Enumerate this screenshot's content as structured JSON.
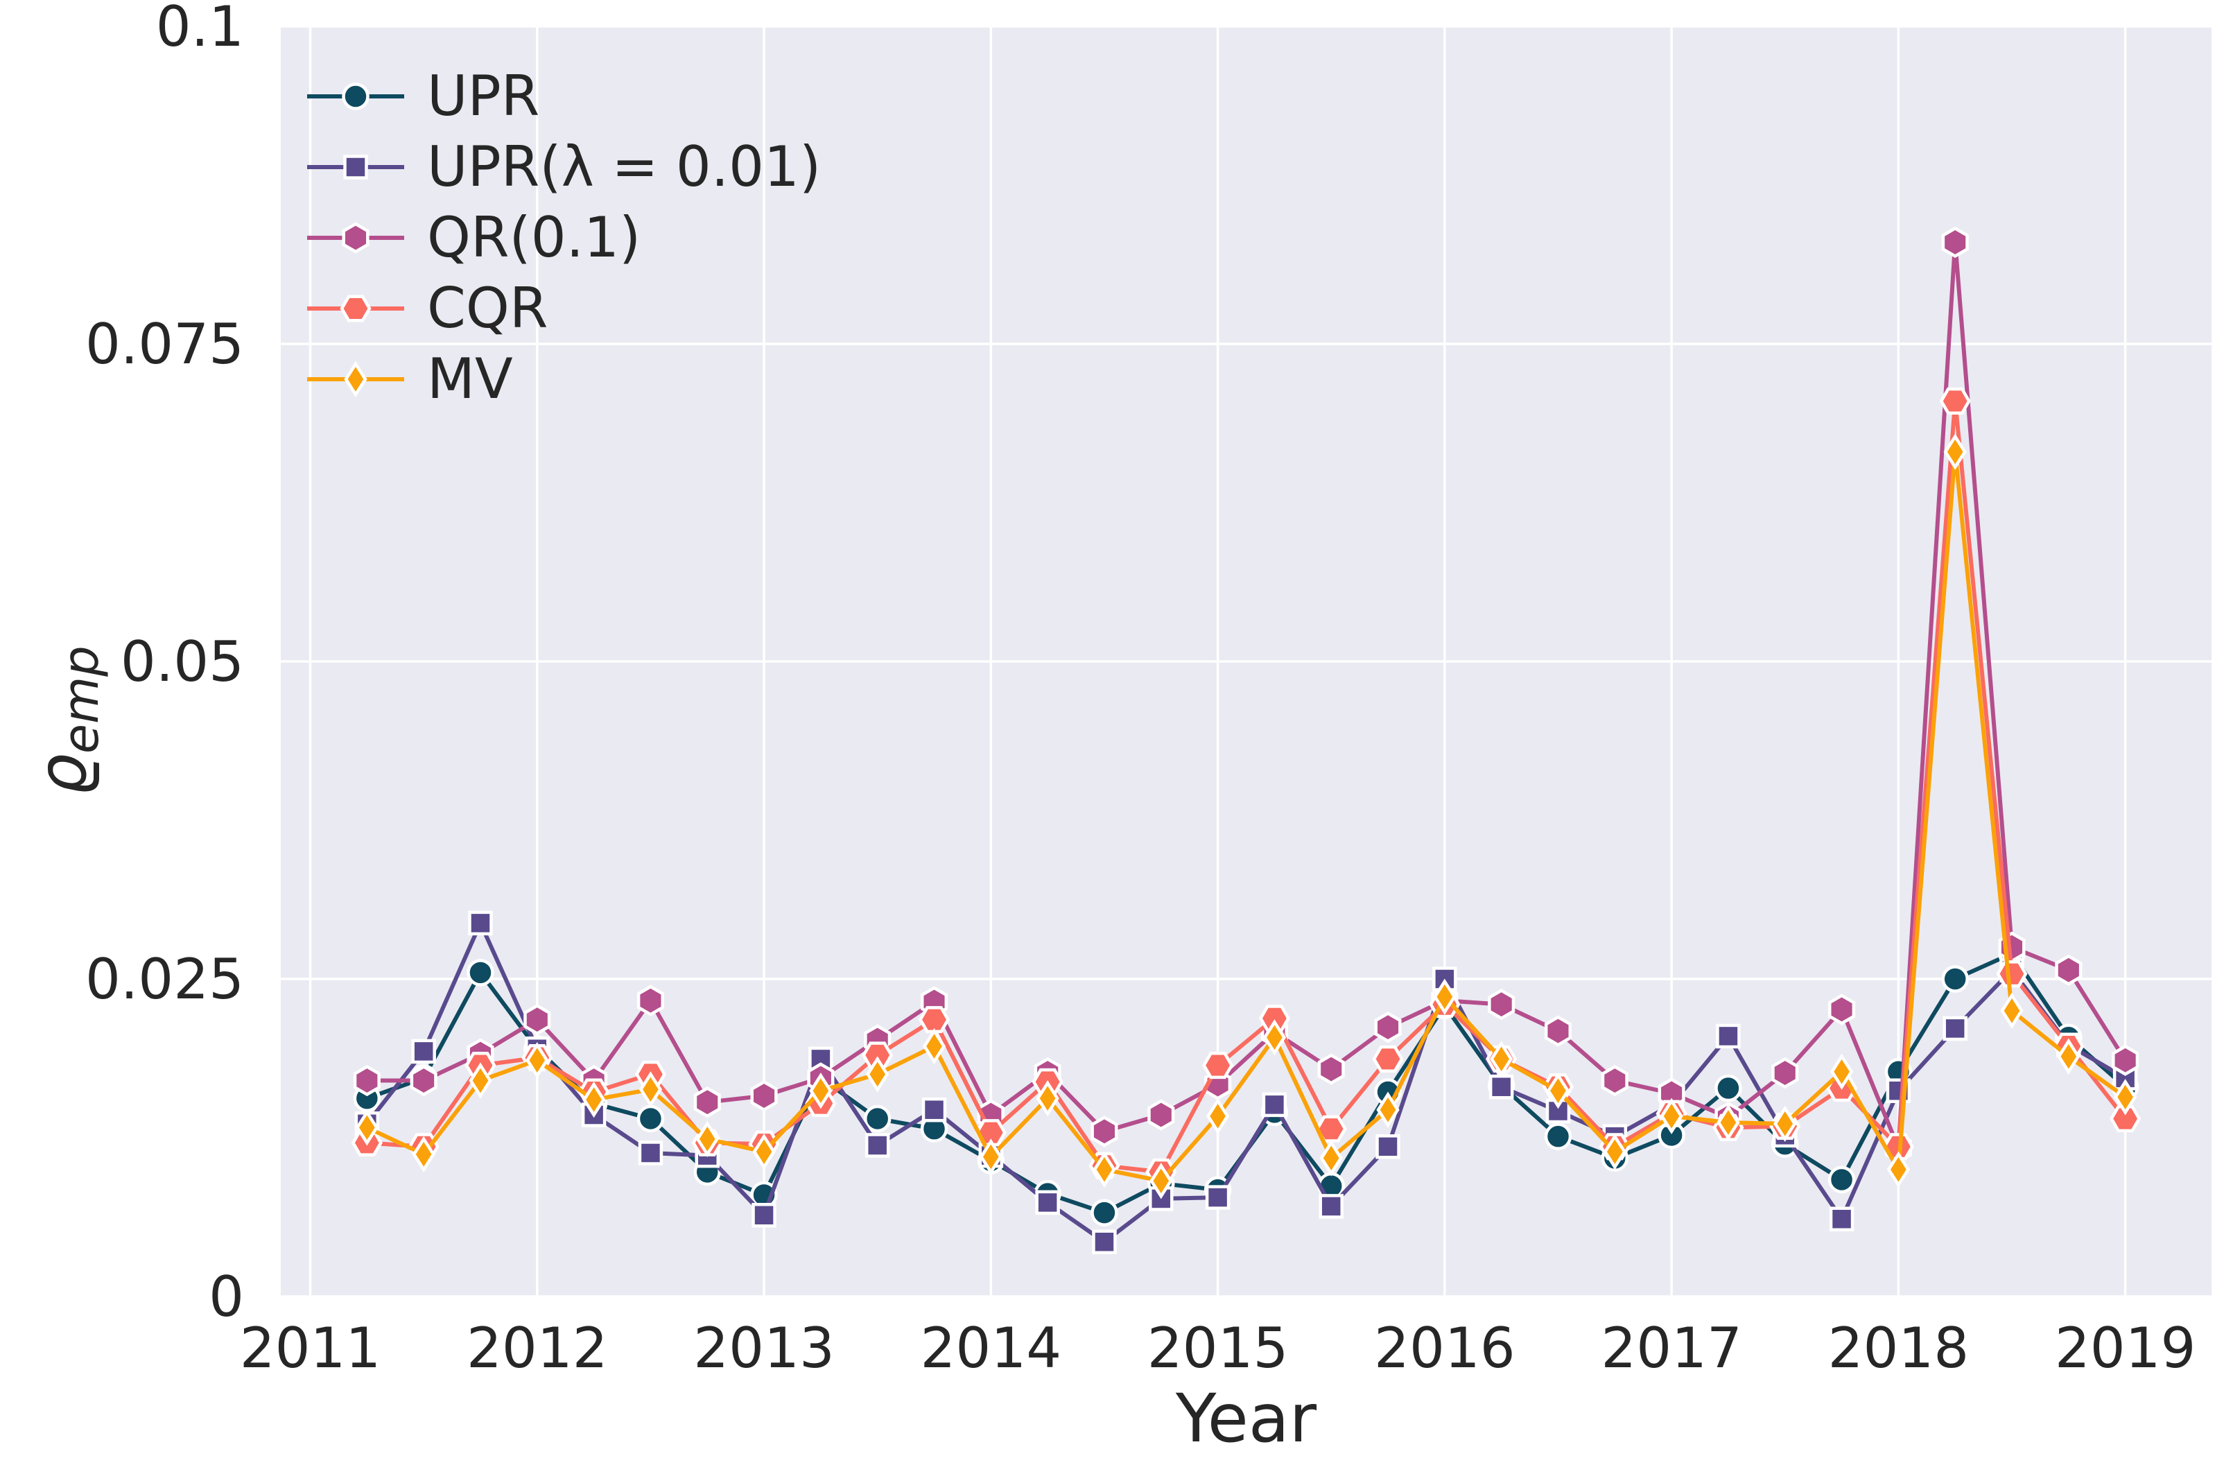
{
  "figure": {
    "background_color": "#ffffff",
    "plot_background_color": "#eaeaf2",
    "grid_color": "#ffffff",
    "text_color": "#262626"
  },
  "chart_data": {
    "type": "line",
    "title": "",
    "xlabel": "Year",
    "ylabel_symbol": "ϱ",
    "ylabel_subscript": "emp",
    "grid": true,
    "legend_position": "upper-left",
    "xlim": [
      2010.87,
      2019.38
    ],
    "ylim": [
      0,
      0.1
    ],
    "xticks": [
      2011,
      2012,
      2013,
      2014,
      2015,
      2016,
      2017,
      2018,
      2019
    ],
    "xtick_labels": [
      "2011",
      "2012",
      "2013",
      "2014",
      "2015",
      "2016",
      "2017",
      "2018",
      "2019"
    ],
    "ytick_values": [
      0,
      0.025,
      0.05,
      0.075,
      0.1
    ],
    "ytick_labels": [
      "0",
      "0.025",
      "0.05",
      "0.075",
      "0.1"
    ],
    "x": [
      2011.25,
      2011.5,
      2011.75,
      2012.0,
      2012.25,
      2012.5,
      2012.75,
      2013.0,
      2013.25,
      2013.5,
      2013.75,
      2014.0,
      2014.25,
      2014.5,
      2014.75,
      2015.0,
      2015.25,
      2015.5,
      2015.75,
      2016.0,
      2016.25,
      2016.5,
      2016.75,
      2017.0,
      2017.25,
      2017.5,
      2017.75,
      2018.0,
      2018.25,
      2018.5,
      2018.75,
      2019.0
    ],
    "series": [
      {
        "name": "UPR",
        "color": "#0e4a60",
        "marker": "circle",
        "values": [
          0.0156,
          0.0172,
          0.0255,
          0.0195,
          0.0152,
          0.014,
          0.0098,
          0.008,
          0.0172,
          0.014,
          0.0132,
          0.0107,
          0.0081,
          0.0066,
          0.0089,
          0.0084,
          0.0145,
          0.0087,
          0.0161,
          0.0229,
          0.0166,
          0.0126,
          0.0109,
          0.0127,
          0.0164,
          0.012,
          0.0092,
          0.0177,
          0.025,
          0.027,
          0.0204,
          0.0165
        ]
      },
      {
        "name": "UPR(λ = 0.01)",
        "color": "#594a8d",
        "marker": "square",
        "values": [
          0.0136,
          0.0193,
          0.0294,
          0.0195,
          0.0143,
          0.0113,
          0.0111,
          0.0064,
          0.0187,
          0.0119,
          0.0147,
          0.0111,
          0.0074,
          0.0043,
          0.0077,
          0.0078,
          0.0151,
          0.0071,
          0.0118,
          0.025,
          0.0165,
          0.0146,
          0.0126,
          0.0151,
          0.0205,
          0.0127,
          0.0061,
          0.0162,
          0.0211,
          0.0257,
          0.0198,
          0.0172
        ]
      },
      {
        "name": "QR(0.1)",
        "color": "#b44e8c",
        "marker": "hexagon-pointy",
        "values": [
          0.017,
          0.017,
          0.0191,
          0.0218,
          0.017,
          0.0233,
          0.0153,
          0.0158,
          0.0172,
          0.0202,
          0.0232,
          0.0143,
          0.0176,
          0.013,
          0.0143,
          0.0167,
          0.0208,
          0.0179,
          0.0212,
          0.0233,
          0.023,
          0.0209,
          0.017,
          0.016,
          0.0141,
          0.0176,
          0.0226,
          0.0117,
          0.083,
          0.0275,
          0.0257,
          0.0186
        ]
      },
      {
        "name": "CQR",
        "color": "#fa6b60",
        "marker": "hexagon-flat",
        "values": [
          0.0121,
          0.0118,
          0.0182,
          0.0188,
          0.0161,
          0.0175,
          0.0121,
          0.012,
          0.0152,
          0.019,
          0.0218,
          0.0129,
          0.0169,
          0.0103,
          0.0098,
          0.0182,
          0.0219,
          0.0132,
          0.0187,
          0.023,
          0.0187,
          0.0165,
          0.0118,
          0.0144,
          0.0133,
          0.0134,
          0.0164,
          0.0118,
          0.0705,
          0.0254,
          0.0197,
          0.014
        ]
      },
      {
        "name": "MV",
        "color": "#fba109",
        "marker": "thin-diamond",
        "values": [
          0.0133,
          0.0112,
          0.017,
          0.0186,
          0.0155,
          0.0163,
          0.0124,
          0.0114,
          0.0162,
          0.0175,
          0.0197,
          0.011,
          0.0156,
          0.01,
          0.0091,
          0.0142,
          0.0204,
          0.0109,
          0.0147,
          0.0236,
          0.0187,
          0.0162,
          0.0114,
          0.0142,
          0.0137,
          0.0136,
          0.0177,
          0.01,
          0.0665,
          0.0225,
          0.0189,
          0.0157
        ]
      }
    ]
  }
}
